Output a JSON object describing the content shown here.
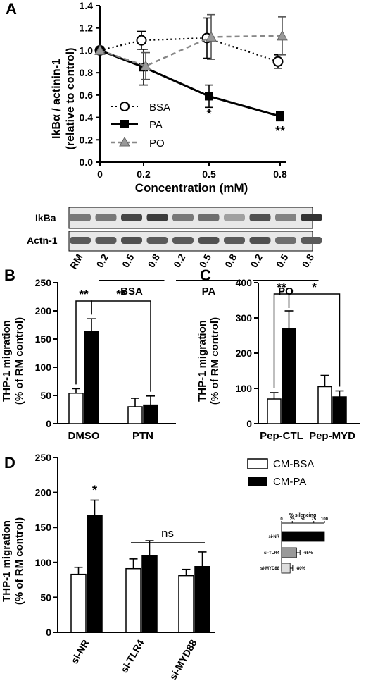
{
  "panels": {
    "A": {
      "letter": "A",
      "chart_data": {
        "type": "line",
        "x": [
          0,
          0.2,
          0.5,
          0.8
        ],
        "xlabel": "Concentration (mM)",
        "ylabel_line1": "IkBα / actinin-1",
        "ylabel_line2": "(relative to control)",
        "ylim": [
          0.0,
          1.4
        ],
        "yticks": [
          "0.0",
          "0.2",
          "0.4",
          "0.6",
          "0.8",
          "1.0",
          "1.2",
          "1.4"
        ],
        "xticks": [
          "0",
          "0.2",
          "0.5",
          "0.8"
        ],
        "series": [
          {
            "name": "BSA",
            "values": [
              1.0,
              1.09,
              1.11,
              0.9
            ],
            "err": [
              0,
              0.08,
              0.18,
              0.06
            ]
          },
          {
            "name": "PA",
            "values": [
              1.0,
              0.85,
              0.59,
              0.41
            ],
            "err": [
              0,
              0.16,
              0.1,
              0.04
            ]
          },
          {
            "name": "PO",
            "values": [
              1.0,
              0.86,
              1.12,
              1.13
            ],
            "err": [
              0,
              0.12,
              0.2,
              0.17
            ]
          }
        ],
        "significance": [
          {
            "x": 0.5,
            "label": "*"
          },
          {
            "x": 0.8,
            "label": "**"
          }
        ],
        "legend_position": "left"
      }
    },
    "blot": {
      "rows": [
        "IkBa",
        "Actn-1"
      ],
      "lanes": [
        "RM",
        "0.2",
        "0.5",
        "0.8",
        "0.2",
        "0.5",
        "0.8",
        "0.2",
        "0.5",
        "0.8"
      ],
      "groups": [
        "BSA",
        "PA",
        "PO"
      ]
    },
    "B": {
      "letter": "B",
      "chart_data": {
        "type": "bar",
        "categories": [
          "DMSO",
          "PTN"
        ],
        "series": [
          {
            "name": "CM-BSA",
            "values": [
              54,
              30
            ],
            "err": [
              8,
              15
            ]
          },
          {
            "name": "CM-PA",
            "values": [
              164,
              33
            ],
            "err": [
              22,
              16
            ]
          }
        ],
        "ylabel_line1": "THP-1 migration",
        "ylabel_line2": "(% of RM control)",
        "ylim": [
          0,
          250
        ],
        "yticks": [
          "0",
          "50",
          "100",
          "150",
          "200",
          "250"
        ],
        "brackets": [
          {
            "label": "**"
          },
          {
            "label": "**"
          }
        ]
      }
    },
    "C": {
      "letter": "C",
      "chart_data": {
        "type": "bar",
        "categories": [
          "Pep-CTL",
          "Pep-MYD"
        ],
        "series": [
          {
            "name": "CM-BSA",
            "values": [
              70,
              105
            ],
            "err": [
              18,
              32
            ]
          },
          {
            "name": "CM-PA",
            "values": [
              270,
              76
            ],
            "err": [
              50,
              17
            ]
          }
        ],
        "ylabel_line1": "THP-1 migration",
        "ylabel_line2": "(% of RM control)",
        "ylim": [
          0,
          400
        ],
        "yticks": [
          "0",
          "100",
          "200",
          "300",
          "400"
        ],
        "brackets": [
          {
            "label": "**"
          },
          {
            "label": "*"
          }
        ]
      }
    },
    "D": {
      "letter": "D",
      "chart_data": {
        "type": "bar",
        "categories": [
          "si-NR",
          "si-TLR4",
          "si-MYD88"
        ],
        "series": [
          {
            "name": "CM-BSA",
            "values": [
              83,
              91,
              81
            ],
            "err": [
              10,
              14,
              9
            ]
          },
          {
            "name": "CM-PA",
            "values": [
              167,
              110,
              94
            ],
            "err": [
              22,
              21,
              21
            ]
          }
        ],
        "ylabel_line1": "THP-1 migration",
        "ylabel_line2": "(% of RM control)",
        "ylim": [
          0,
          250
        ],
        "yticks": [
          "0",
          "50",
          "100",
          "150",
          "200",
          "250"
        ],
        "star": "*",
        "ns_label": "ns",
        "legend": [
          "CM-BSA",
          "CM-PA"
        ]
      }
    },
    "inset": {
      "chart_data": {
        "type": "bar",
        "orientation": "horizontal",
        "title": "% silencing",
        "categories": [
          "si-NR",
          "si-TLR4",
          "si-MYD88"
        ],
        "values": [
          100,
          35,
          20
        ],
        "err": [
          0,
          8,
          6
        ],
        "annotations": [
          "",
          "-65%",
          "-80%"
        ],
        "xlim": [
          0,
          100
        ],
        "xticks": [
          "0",
          "25",
          "50",
          "75",
          "100"
        ]
      }
    }
  }
}
